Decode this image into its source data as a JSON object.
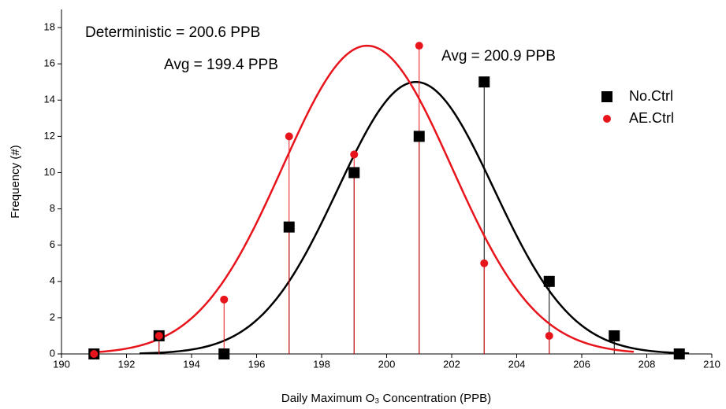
{
  "chart_data": {
    "type": "scatter",
    "x_label": "Daily Maximum O₃ Concentration (PPB)",
    "y_label": "Frequency (#)",
    "annotations": [
      {
        "text": "Deterministic = 200.6 PPB",
        "color": "#000000"
      },
      {
        "text": "Avg = 199.4 PPB",
        "color": "#e8141c"
      },
      {
        "text": "Avg = 200.9 PPB",
        "color": "#000000"
      }
    ],
    "xlim": [
      190,
      210
    ],
    "xticks": [
      190,
      192,
      194,
      196,
      198,
      200,
      202,
      204,
      206,
      208,
      210
    ],
    "ylim": [
      0,
      19
    ],
    "yticks": [
      0,
      2,
      4,
      6,
      8,
      10,
      12,
      14,
      16,
      18
    ],
    "legend": "upper right",
    "series": [
      {
        "name": "No.Ctrl",
        "color": "#000000",
        "marker": "square",
        "x": [
          191,
          193,
          195,
          197,
          199,
          201,
          203,
          205,
          207,
          209
        ],
        "values": [
          0,
          1,
          0,
          7,
          10,
          12,
          15,
          4,
          1,
          0
        ],
        "fit": {
          "mean": 200.9,
          "peak": 15,
          "sigma": 2.4,
          "range": [
            192.4,
            209.3
          ]
        }
      },
      {
        "name": "AE.Ctrl",
        "color": "#e8141c",
        "marker": "circle",
        "x": [
          191,
          193,
          195,
          197,
          199,
          201,
          203,
          205
        ],
        "values": [
          0,
          1,
          3,
          12,
          11,
          17,
          5,
          1
        ],
        "fit": {
          "mean": 199.4,
          "peak": 17,
          "sigma": 2.6,
          "range": [
            191,
            207.6
          ]
        }
      }
    ]
  }
}
